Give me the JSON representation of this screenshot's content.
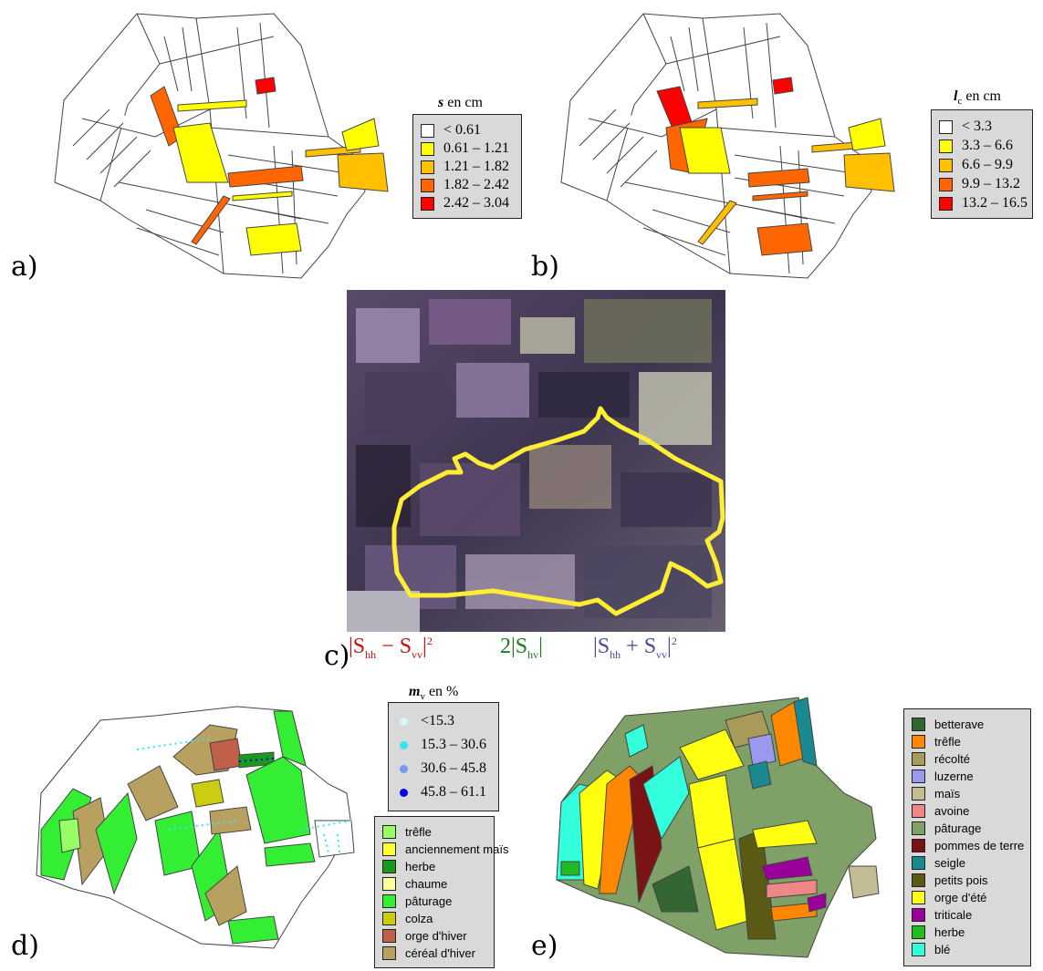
{
  "panel_a": {
    "label": "a)",
    "legend": {
      "title_var": "s",
      "title_rest": " en cm",
      "items": [
        {
          "color": "#ffffff",
          "label": "< 0.61"
        },
        {
          "color": "#ffff00",
          "label": "0.61 – 1.21"
        },
        {
          "color": "#ffc000",
          "label": "1.21 – 1.82"
        },
        {
          "color": "#ff6600",
          "label": "1.82 – 2.42"
        },
        {
          "color": "#ff0000",
          "label": "2.42 – 3.04"
        }
      ]
    }
  },
  "panel_b": {
    "label": "b)",
    "legend": {
      "title_var": "l",
      "title_sub": "c",
      "title_rest": " en cm",
      "items": [
        {
          "color": "#ffffff",
          "label": "< 3.3"
        },
        {
          "color": "#ffff00",
          "label": "3.3 – 6.6"
        },
        {
          "color": "#ffc000",
          "label": "6.6 – 9.9"
        },
        {
          "color": "#ff6600",
          "label": "9.9 – 13.2"
        },
        {
          "color": "#ff0000",
          "label": "13.2 – 16.5"
        }
      ]
    }
  },
  "panel_c": {
    "label": "c)",
    "formula_red": {
      "open": "|S",
      "sub1": "hh",
      "mid": " − S",
      "sub2": "vv",
      "close": "|",
      "sup": "2"
    },
    "formula_green": {
      "open": "2|S",
      "sub1": "hv",
      "close": "|"
    },
    "formula_blue": {
      "open": "|S",
      "sub1": "hh",
      "mid": " + S",
      "sub2": "vv",
      "close": "|",
      "sup": "2"
    },
    "outline_color": "#ffee33"
  },
  "panel_d": {
    "label": "d)",
    "moisture_legend": {
      "title_var": "m",
      "title_sub": "v",
      "title_rest": " en %",
      "items": [
        {
          "color": "#d8f4f4",
          "label": "<15.3"
        },
        {
          "color": "#33e6f2",
          "label": "15.3 – 30.6"
        },
        {
          "color": "#6f9cf0",
          "label": "30.6 – 45.8"
        },
        {
          "color": "#0000ee",
          "label": "45.8 – 61.1"
        }
      ]
    },
    "crop_legend": {
      "items": [
        {
          "color": "#99ff66",
          "label": "trêfle"
        },
        {
          "color": "#ffff33",
          "label": "anciennement maïs"
        },
        {
          "color": "#1a9a1a",
          "label": "herbe"
        },
        {
          "color": "#ffff99",
          "label": "chaume"
        },
        {
          "color": "#33ee33",
          "label": "pâturage"
        },
        {
          "color": "#cccc11",
          "label": "colza"
        },
        {
          "color": "#c0604a",
          "label": "orge d'hiver"
        },
        {
          "color": "#b8a060",
          "label": "céréal d'hiver"
        }
      ]
    }
  },
  "panel_e": {
    "label": "e)",
    "legend": {
      "items": [
        {
          "color": "#336633",
          "label": "betterave"
        },
        {
          "color": "#ff8800",
          "label": "trêfle"
        },
        {
          "color": "#a89b5a",
          "label": "récolté"
        },
        {
          "color": "#9999ee",
          "label": "luzerne"
        },
        {
          "color": "#c4bc94",
          "label": "maïs"
        },
        {
          "color": "#ee8888",
          "label": "avoine"
        },
        {
          "color": "#7fa066",
          "label": "pâturage"
        },
        {
          "color": "#7a1414",
          "label": "pommes de terre"
        },
        {
          "color": "#1a8a90",
          "label": "seigle"
        },
        {
          "color": "#5a5a14",
          "label": "petits pois"
        },
        {
          "color": "#ffff11",
          "label": "orge d'été"
        },
        {
          "color": "#990099",
          "label": "triticale"
        },
        {
          "color": "#22bb22",
          "label": "herbe"
        },
        {
          "color": "#33ffdd",
          "label": "blé"
        }
      ]
    }
  }
}
